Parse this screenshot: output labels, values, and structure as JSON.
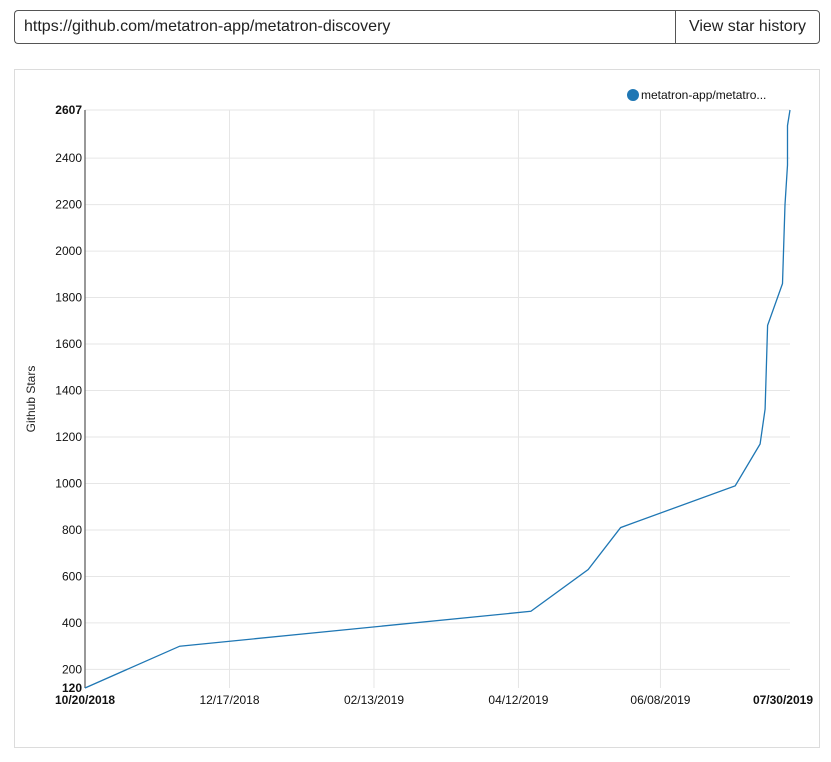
{
  "toolbar": {
    "url_value": "https://github.com/metatron-app/metatron-discovery",
    "button_label": "View star history"
  },
  "colors": {
    "series": "#1f77b4",
    "grid": "#e6e6e6",
    "axis": "#555555"
  },
  "chart_data": {
    "type": "line",
    "title": "",
    "ylabel": "Github Stars",
    "xlabel": "",
    "grid": true,
    "legend_position": "top-right",
    "xlim": [
      "2018-10-20",
      "2019-07-30"
    ],
    "ylim": [
      120,
      2607
    ],
    "x_ticks": [
      {
        "label": "10/20/2018",
        "date": "2018-10-20",
        "bold": true
      },
      {
        "label": "12/17/2018",
        "date": "2018-12-17",
        "bold": false
      },
      {
        "label": "02/13/2019",
        "date": "2019-02-13",
        "bold": false
      },
      {
        "label": "04/12/2019",
        "date": "2019-04-12",
        "bold": false
      },
      {
        "label": "06/08/2019",
        "date": "2019-06-08",
        "bold": false
      },
      {
        "label": "07/30/2019",
        "date": "2019-07-30",
        "bold": true
      }
    ],
    "y_ticks": [
      {
        "label": "120",
        "value": 120,
        "bold": true
      },
      {
        "label": "200",
        "value": 200,
        "bold": false
      },
      {
        "label": "400",
        "value": 400,
        "bold": false
      },
      {
        "label": "600",
        "value": 600,
        "bold": false
      },
      {
        "label": "800",
        "value": 800,
        "bold": false
      },
      {
        "label": "1000",
        "value": 1000,
        "bold": false
      },
      {
        "label": "1200",
        "value": 1200,
        "bold": false
      },
      {
        "label": "1400",
        "value": 1400,
        "bold": false
      },
      {
        "label": "1600",
        "value": 1600,
        "bold": false
      },
      {
        "label": "1800",
        "value": 1800,
        "bold": false
      },
      {
        "label": "2000",
        "value": 2000,
        "bold": false
      },
      {
        "label": "2200",
        "value": 2200,
        "bold": false
      },
      {
        "label": "2400",
        "value": 2400,
        "bold": false
      },
      {
        "label": "2607",
        "value": 2607,
        "bold": true
      }
    ],
    "series": [
      {
        "name": "metatron-app/metatro...",
        "points": [
          {
            "x": "2018-10-20",
            "y": 120
          },
          {
            "x": "2018-11-27",
            "y": 300
          },
          {
            "x": "2019-04-17",
            "y": 450
          },
          {
            "x": "2019-05-10",
            "y": 630
          },
          {
            "x": "2019-05-23",
            "y": 810
          },
          {
            "x": "2019-07-08",
            "y": 990
          },
          {
            "x": "2019-07-18",
            "y": 1170
          },
          {
            "x": "2019-07-20",
            "y": 1320
          },
          {
            "x": "2019-07-21",
            "y": 1680
          },
          {
            "x": "2019-07-27",
            "y": 1860
          },
          {
            "x": "2019-07-28",
            "y": 2200
          },
          {
            "x": "2019-07-29",
            "y": 2370
          },
          {
            "x": "2019-07-29",
            "y": 2540
          },
          {
            "x": "2019-07-30",
            "y": 2607
          }
        ]
      }
    ]
  }
}
